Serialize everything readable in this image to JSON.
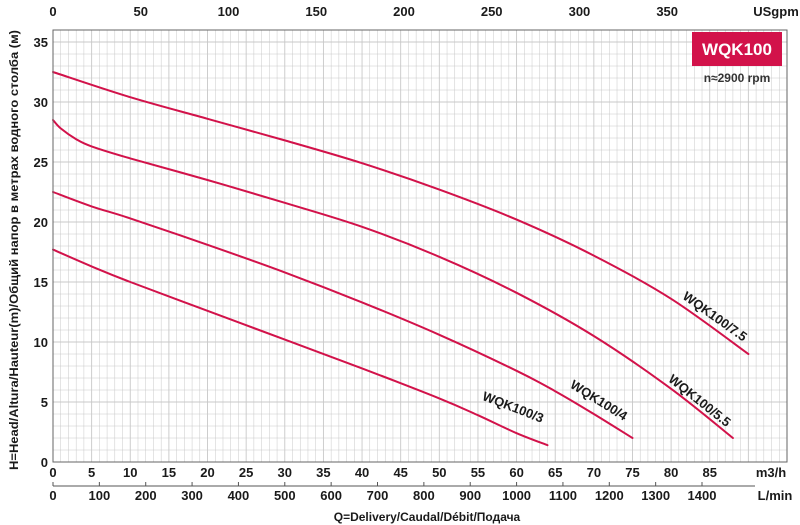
{
  "chart_data": {
    "type": "line",
    "title": "WQK100",
    "subtitle": "n≈2900 rpm",
    "xlabel": "Q=Delivery/Caudal/Débit/Подача",
    "ylabel": "H=Head/Altura/Hauteur(m)/Общий напор в метрах водного столба (м)",
    "x_unit": "m3/h",
    "x_lpm_unit": "L/min",
    "x_usgpm_unit": "USgpm",
    "xlim": [
      0,
      95
    ],
    "ylim": [
      0,
      36
    ],
    "xticks": [
      "0",
      "5",
      "10",
      "15",
      "20",
      "25",
      "30",
      "35",
      "40",
      "45",
      "50",
      "55",
      "60",
      "65",
      "70",
      "75",
      "80",
      "85"
    ],
    "yticks": [
      "0",
      "5",
      "10",
      "15",
      "20",
      "25",
      "30",
      "35"
    ],
    "lpm_ticks": [
      "0",
      "100",
      "200",
      "300",
      "400",
      "500",
      "600",
      "700",
      "800",
      "900",
      "1000",
      "1100",
      "1200",
      "1300",
      "1400"
    ],
    "usgpm_ticks": [
      "0",
      "50",
      "100",
      "150",
      "200",
      "250",
      "300",
      "350"
    ],
    "grid": true,
    "series": [
      {
        "name": "WQK100/3",
        "x": [
          0,
          5,
          10,
          20,
          30,
          40,
          50,
          55,
          60,
          64
        ],
        "y": [
          17.7,
          16.3,
          15,
          12.6,
          10.2,
          7.8,
          5.3,
          3.9,
          2.4,
          1.4
        ]
      },
      {
        "name": "WQK100/4",
        "x": [
          0,
          5,
          10,
          20,
          30,
          40,
          50,
          60,
          65,
          70,
          75
        ],
        "y": [
          22.5,
          21.3,
          20.3,
          18.1,
          15.8,
          13.3,
          10.6,
          7.6,
          5.9,
          4.0,
          2.0
        ]
      },
      {
        "name": "WQK100/5.5",
        "x": [
          0,
          1,
          3,
          5,
          10,
          20,
          30,
          40,
          50,
          60,
          70,
          80,
          88
        ],
        "y": [
          28.5,
          27.8,
          26.9,
          26.3,
          25.3,
          23.5,
          21.6,
          19.6,
          17.1,
          14.1,
          10.5,
          6.1,
          2.0
        ]
      },
      {
        "name": "WQK100/7.5",
        "x": [
          0,
          10,
          20,
          30,
          40,
          50,
          60,
          70,
          80,
          90
        ],
        "y": [
          32.5,
          30.4,
          28.6,
          26.8,
          24.9,
          22.7,
          20.2,
          17.2,
          13.6,
          9.0
        ]
      }
    ],
    "colors": {
      "curve": "#d2124a",
      "badge": "#d2124a",
      "grid": "#c8c8c8"
    }
  }
}
